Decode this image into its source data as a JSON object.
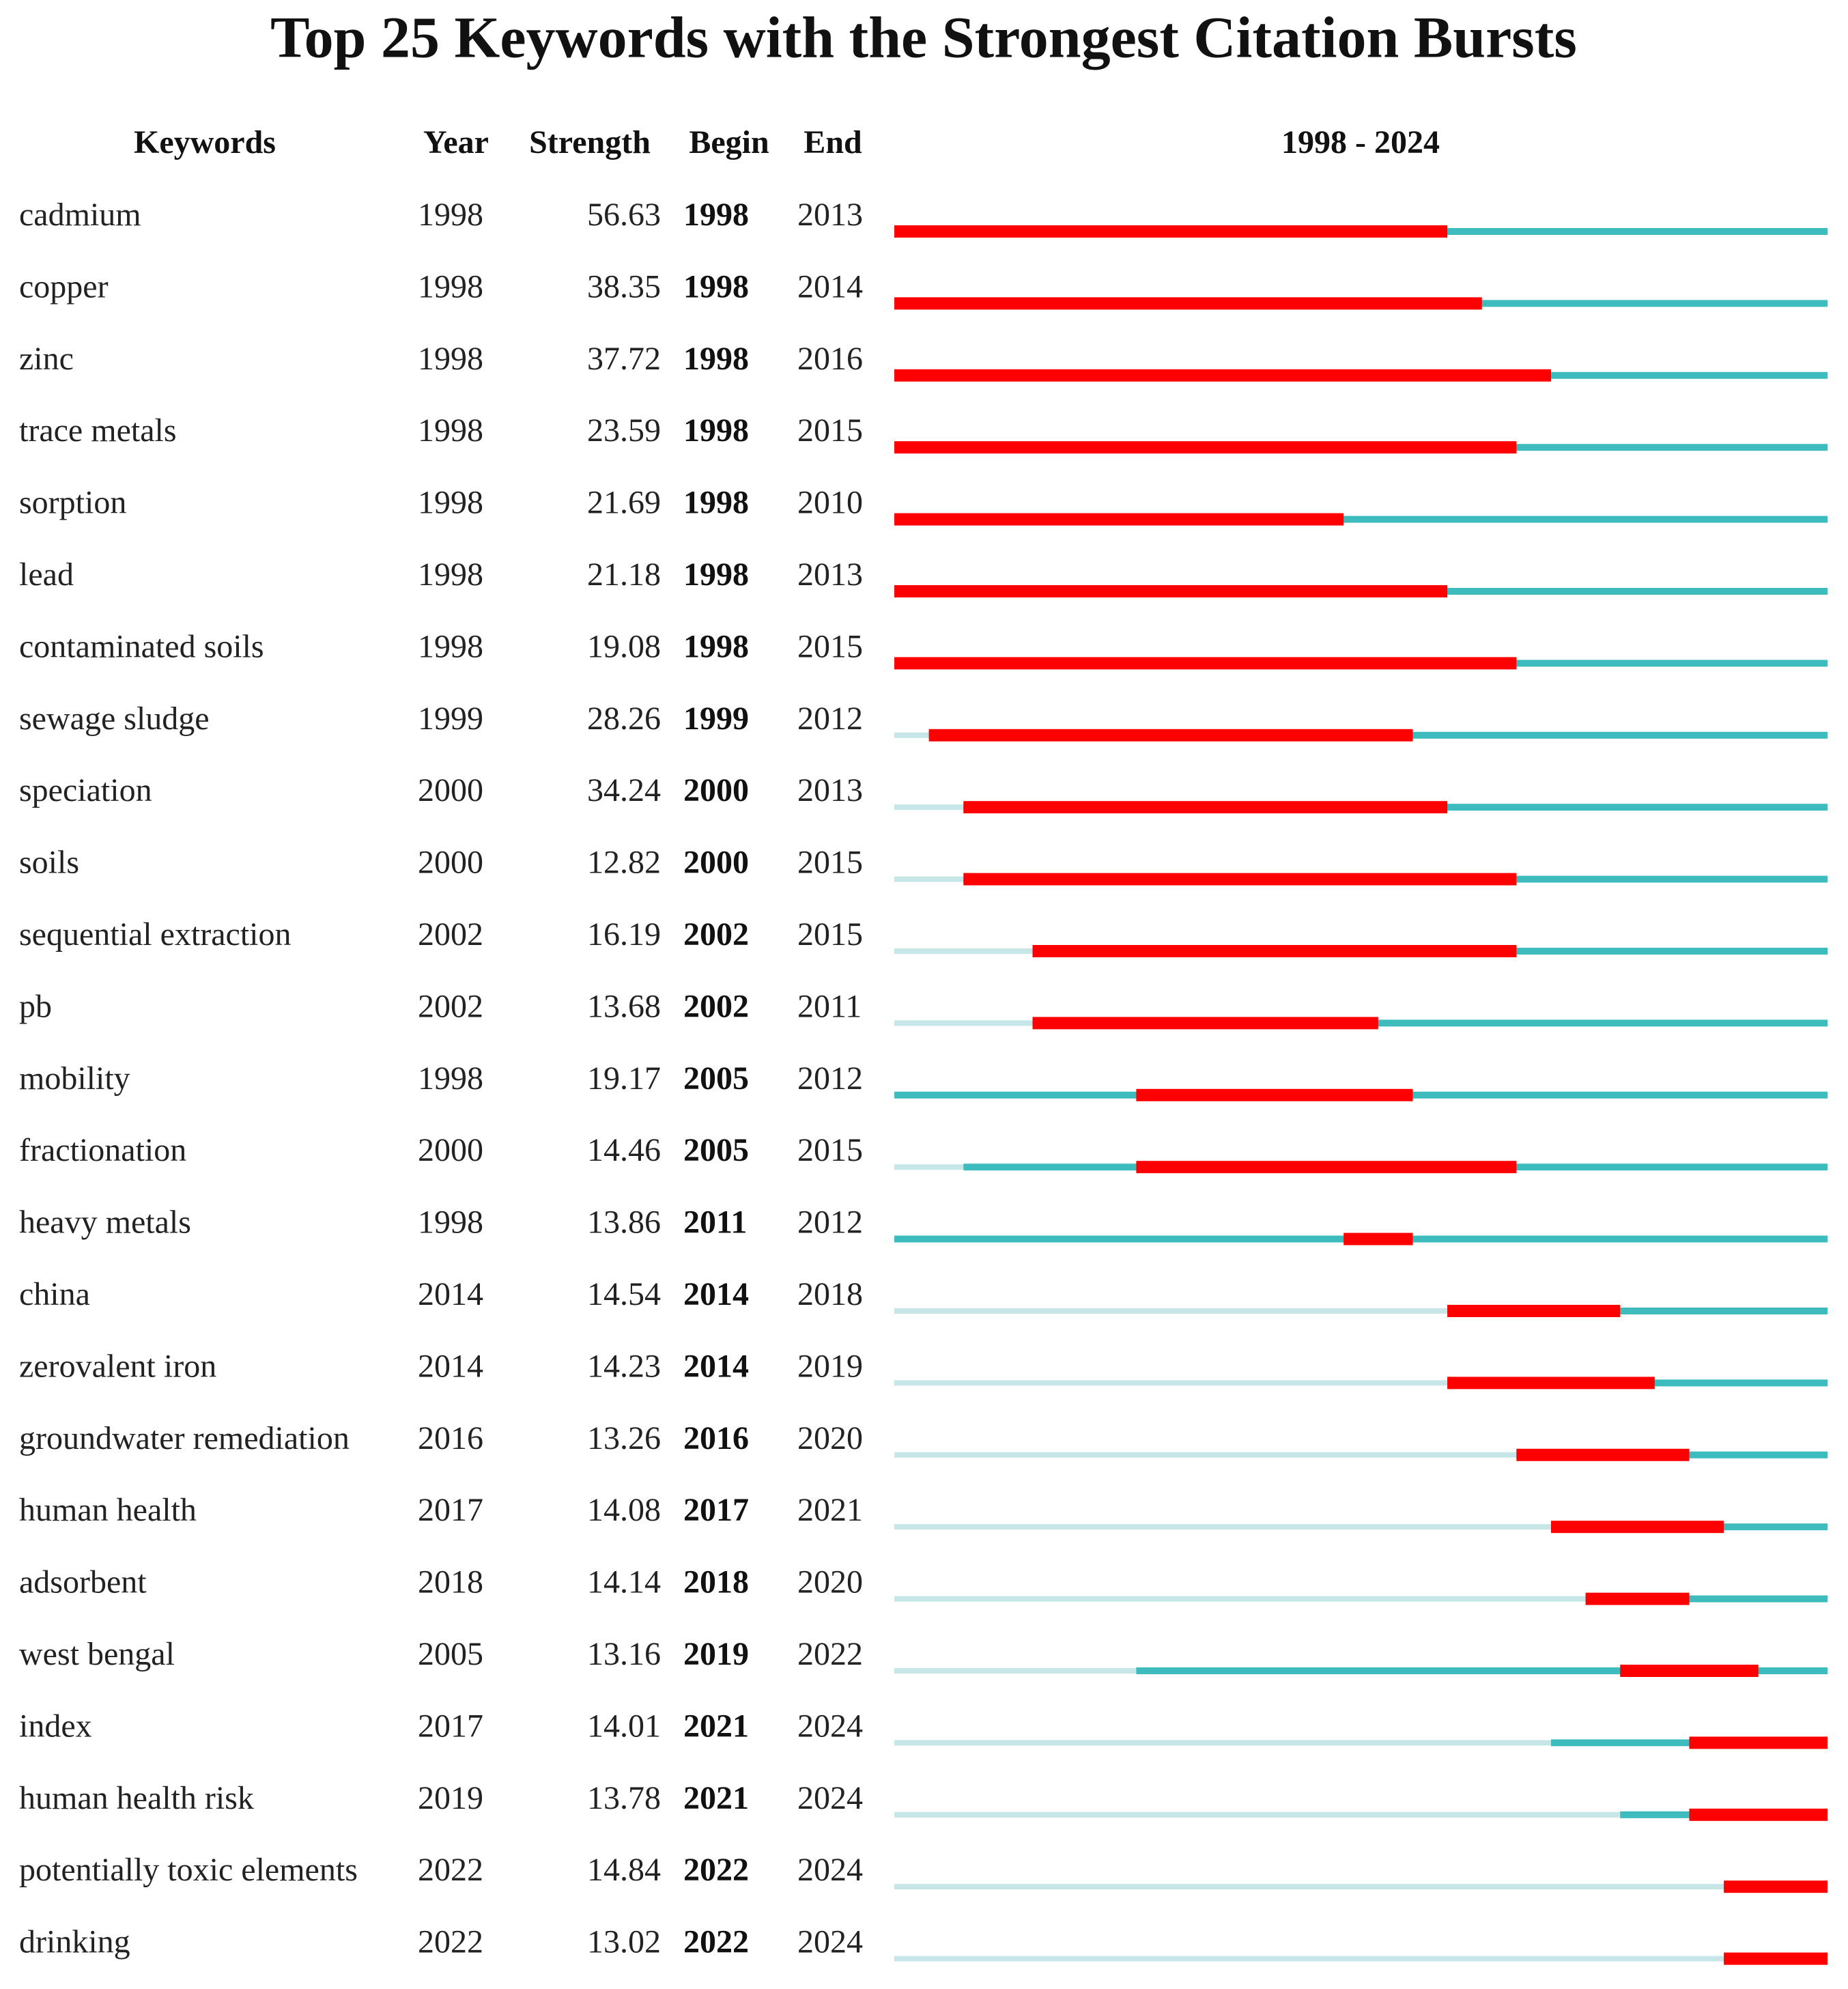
{
  "chart_data": {
    "type": "burst",
    "title": "Top 25 Keywords with the Strongest Citation Bursts",
    "columns": [
      "Keywords",
      "Year",
      "Strength",
      "Begin",
      "End"
    ],
    "period_label": "1998 - 2024",
    "xlim": [
      1998,
      2024
    ],
    "colors": {
      "burst": "#ff0000",
      "active": "#3dbbbd",
      "inactive": "#c6e6e8"
    },
    "rows": [
      {
        "keyword": "cadmium",
        "year": 1998,
        "strength": 56.63,
        "begin": 1998,
        "end": 2013
      },
      {
        "keyword": "copper",
        "year": 1998,
        "strength": 38.35,
        "begin": 1998,
        "end": 2014
      },
      {
        "keyword": "zinc",
        "year": 1998,
        "strength": 37.72,
        "begin": 1998,
        "end": 2016
      },
      {
        "keyword": "trace metals",
        "year": 1998,
        "strength": 23.59,
        "begin": 1998,
        "end": 2015
      },
      {
        "keyword": "sorption",
        "year": 1998,
        "strength": 21.69,
        "begin": 1998,
        "end": 2010
      },
      {
        "keyword": "lead",
        "year": 1998,
        "strength": 21.18,
        "begin": 1998,
        "end": 2013
      },
      {
        "keyword": "contaminated soils",
        "year": 1998,
        "strength": 19.08,
        "begin": 1998,
        "end": 2015
      },
      {
        "keyword": "sewage sludge",
        "year": 1999,
        "strength": 28.26,
        "begin": 1999,
        "end": 2012
      },
      {
        "keyword": "speciation",
        "year": 2000,
        "strength": 34.24,
        "begin": 2000,
        "end": 2013
      },
      {
        "keyword": "soils",
        "year": 2000,
        "strength": 12.82,
        "begin": 2000,
        "end": 2015
      },
      {
        "keyword": "sequential extraction",
        "year": 2002,
        "strength": 16.19,
        "begin": 2002,
        "end": 2015
      },
      {
        "keyword": "pb",
        "year": 2002,
        "strength": 13.68,
        "begin": 2002,
        "end": 2011
      },
      {
        "keyword": "mobility",
        "year": 1998,
        "strength": 19.17,
        "begin": 2005,
        "end": 2012
      },
      {
        "keyword": "fractionation",
        "year": 2000,
        "strength": 14.46,
        "begin": 2005,
        "end": 2015
      },
      {
        "keyword": "heavy metals",
        "year": 1998,
        "strength": 13.86,
        "begin": 2011,
        "end": 2012
      },
      {
        "keyword": "china",
        "year": 2014,
        "strength": 14.54,
        "begin": 2014,
        "end": 2018
      },
      {
        "keyword": "zerovalent iron",
        "year": 2014,
        "strength": 14.23,
        "begin": 2014,
        "end": 2019
      },
      {
        "keyword": "groundwater remediation",
        "year": 2016,
        "strength": 13.26,
        "begin": 2016,
        "end": 2020
      },
      {
        "keyword": "human health",
        "year": 2017,
        "strength": 14.08,
        "begin": 2017,
        "end": 2021
      },
      {
        "keyword": "adsorbent",
        "year": 2018,
        "strength": 14.14,
        "begin": 2018,
        "end": 2020
      },
      {
        "keyword": "west bengal",
        "year": 2005,
        "strength": 13.16,
        "begin": 2019,
        "end": 2022
      },
      {
        "keyword": "index",
        "year": 2017,
        "strength": 14.01,
        "begin": 2021,
        "end": 2024
      },
      {
        "keyword": "human health risk",
        "year": 2019,
        "strength": 13.78,
        "begin": 2021,
        "end": 2024
      },
      {
        "keyword": "potentially toxic elements",
        "year": 2022,
        "strength": 14.84,
        "begin": 2022,
        "end": 2024
      },
      {
        "keyword": "drinking",
        "year": 2022,
        "strength": 13.02,
        "begin": 2022,
        "end": 2024
      }
    ]
  }
}
